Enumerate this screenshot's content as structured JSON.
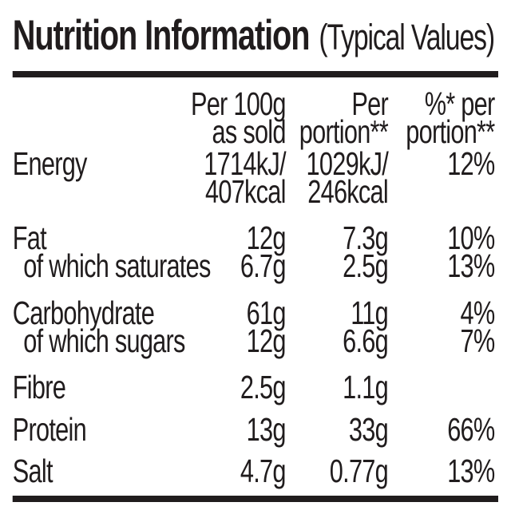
{
  "title": {
    "main": "Nutrition Information",
    "suffix": "(Typical Values)"
  },
  "columns": [
    {
      "line1": "Per 100g",
      "line2": "as sold"
    },
    {
      "line1": "Per",
      "line2": "portion**"
    },
    {
      "line1": "%* per",
      "line2": "portion**"
    }
  ],
  "rows": [
    {
      "label": "Energy",
      "per100g": "1714kJ/",
      "per100g2": "407kcal",
      "portion": "1029kJ/",
      "portion2": "246kcal",
      "percent": "12%"
    },
    {
      "label": "Fat",
      "per100g": "12g",
      "portion": "7.3g",
      "percent": "10%"
    },
    {
      "label": "of which saturates",
      "per100g": "6.7g",
      "portion": "2.5g",
      "percent": "13%"
    },
    {
      "label": "Carbohydrate",
      "per100g": "61g",
      "portion": "11g",
      "percent": "4%"
    },
    {
      "label": "of which sugars",
      "per100g": "12g",
      "portion": "6.6g",
      "percent": "7%"
    },
    {
      "label": "Fibre",
      "per100g": "2.5g",
      "portion": "1.1g",
      "percent": ""
    },
    {
      "label": "Protein",
      "per100g": "13g",
      "portion": "33g",
      "percent": "66%"
    },
    {
      "label": "Salt",
      "per100g": "4.7g",
      "portion": "0.77g",
      "percent": "13%"
    }
  ],
  "colors": {
    "text": "#201c1d",
    "background": "#ffffff"
  }
}
